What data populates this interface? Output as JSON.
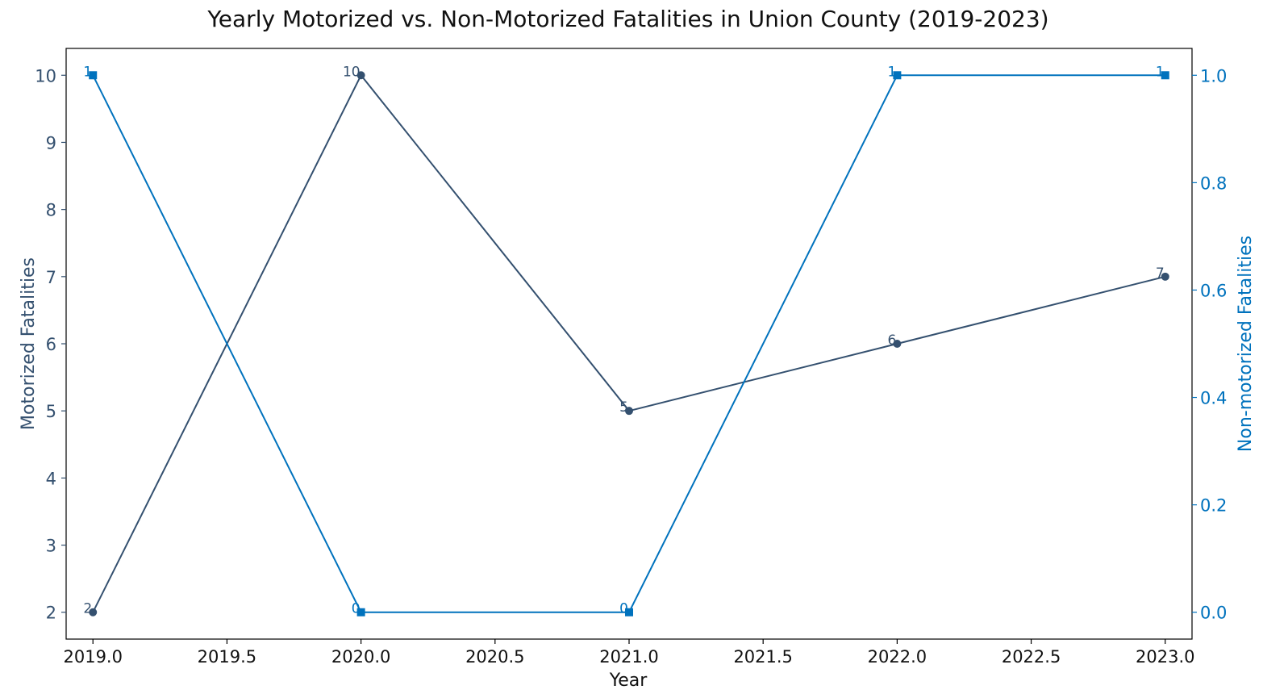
{
  "chart_data": {
    "type": "line",
    "title": "Yearly Motorized vs. Non-Motorized Fatalities in Union County (2019-2023)",
    "xlabel": "Year",
    "ylabel_left": "Motorized Fatalities",
    "ylabel_right": "Non-motorized Fatalities",
    "x": [
      2019,
      2020,
      2021,
      2022,
      2023
    ],
    "xlim": [
      2018.9,
      2023.1
    ],
    "x_ticks": [
      2019.0,
      2019.5,
      2020.0,
      2020.5,
      2021.0,
      2021.5,
      2022.0,
      2022.5,
      2023.0
    ],
    "x_tick_labels": [
      "2019.0",
      "2019.5",
      "2020.0",
      "2020.5",
      "2021.0",
      "2021.5",
      "2022.0",
      "2022.5",
      "2023.0"
    ],
    "ylim_left": [
      1.6,
      10.4
    ],
    "y_ticks_left": [
      2,
      3,
      4,
      5,
      6,
      7,
      8,
      9,
      10
    ],
    "y_tick_labels_left": [
      "2",
      "3",
      "4",
      "5",
      "6",
      "7",
      "8",
      "9",
      "10"
    ],
    "ylim_right": [
      -0.05,
      1.05
    ],
    "y_ticks_right": [
      0.0,
      0.2,
      0.4,
      0.6,
      0.8,
      1.0
    ],
    "y_tick_labels_right": [
      "0.0",
      "0.2",
      "0.4",
      "0.6",
      "0.8",
      "1.0"
    ],
    "grid": false,
    "series": [
      {
        "axis": "left",
        "marker": "circle",
        "color": "#34506f",
        "values": [
          2,
          10,
          5,
          6,
          7
        ],
        "labels": [
          "2",
          "10",
          "5",
          "6",
          "7"
        ]
      },
      {
        "axis": "right",
        "marker": "square",
        "color": "#0072bd",
        "values": [
          1,
          0,
          0,
          1,
          1
        ],
        "labels": [
          "1",
          "0",
          "0",
          "1",
          "1"
        ]
      }
    ]
  }
}
